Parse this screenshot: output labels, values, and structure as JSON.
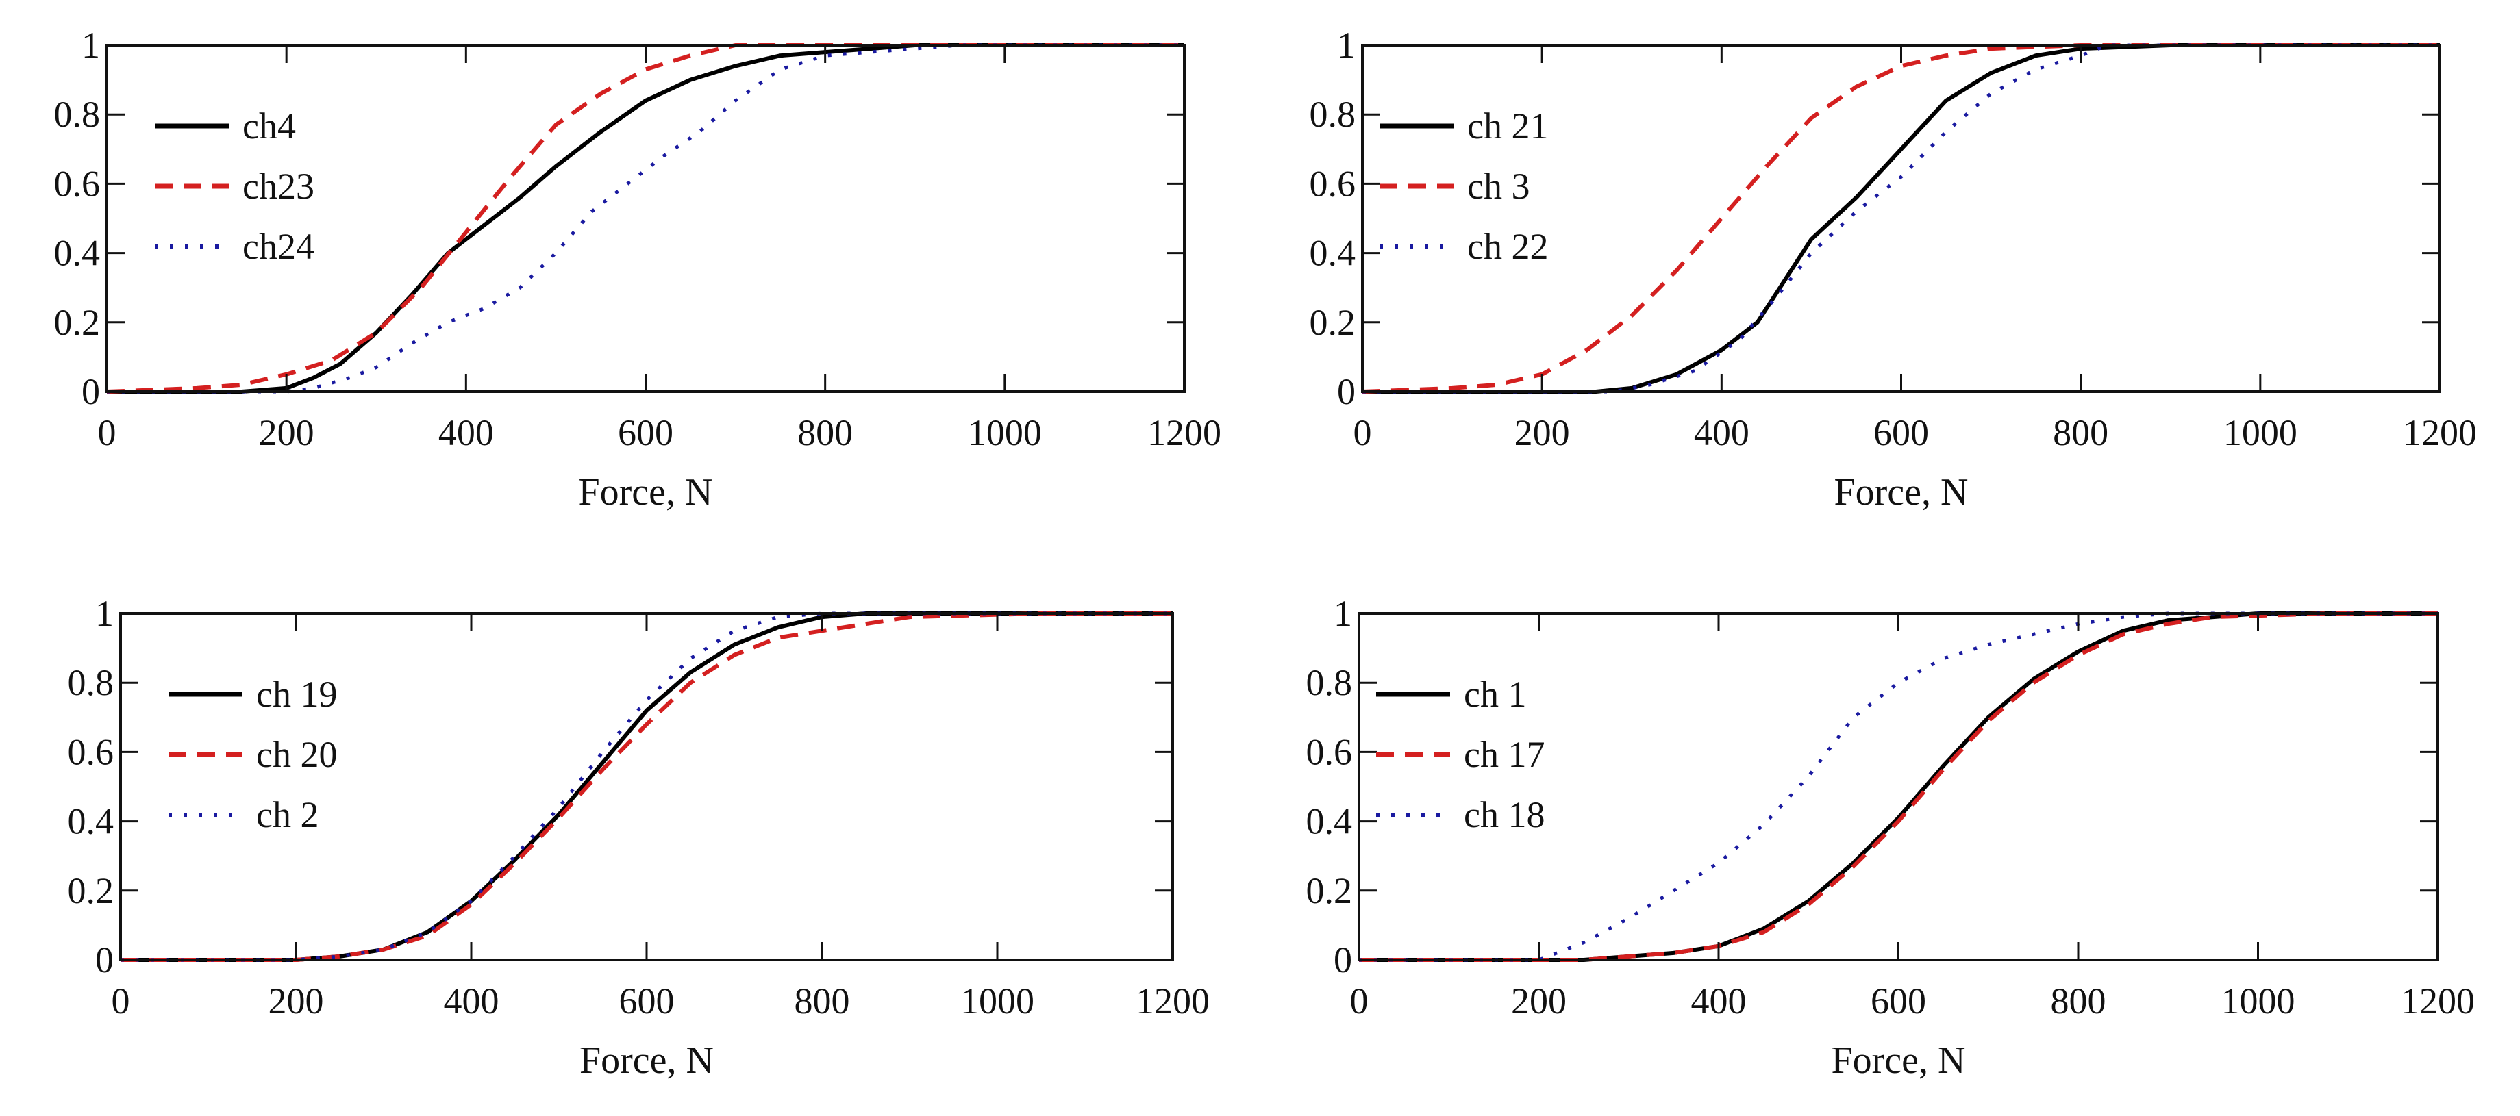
{
  "colors": {
    "solid": "#000000",
    "dashed": "#d42020",
    "dotted": "#1a1aa0"
  },
  "chart_data": [
    {
      "type": "line",
      "xlabel": "Force, N",
      "ylabel": "",
      "xlim": [
        0,
        1200
      ],
      "ylim": [
        0,
        1
      ],
      "xticks": [
        0,
        200,
        400,
        600,
        800,
        1000,
        1200
      ],
      "yticks": [
        0,
        0.2,
        0.4,
        0.6,
        0.8,
        1
      ],
      "xtick_labels": [
        "0",
        "200",
        "400",
        "600",
        "800",
        "1000",
        "1200"
      ],
      "ytick_labels": [
        "0",
        "0.2",
        "0.4",
        "0.6",
        "0.8",
        "1"
      ],
      "grid": false,
      "legend": "top-left",
      "series": [
        {
          "name": "ch4",
          "style": "solid",
          "x": [
            0,
            150,
            200,
            230,
            260,
            300,
            340,
            380,
            420,
            460,
            500,
            550,
            600,
            650,
            700,
            750,
            800,
            850,
            900
          ],
          "y": [
            0,
            0,
            0.01,
            0.04,
            0.08,
            0.17,
            0.28,
            0.4,
            0.48,
            0.56,
            0.65,
            0.75,
            0.84,
            0.9,
            0.94,
            0.97,
            0.98,
            0.99,
            1
          ]
        },
        {
          "name": "ch23",
          "style": "dashed",
          "x": [
            0,
            100,
            150,
            200,
            250,
            300,
            350,
            400,
            450,
            500,
            550,
            600,
            650,
            700
          ],
          "y": [
            0,
            0.01,
            0.02,
            0.05,
            0.09,
            0.17,
            0.3,
            0.46,
            0.62,
            0.77,
            0.86,
            0.93,
            0.97,
            1
          ]
        },
        {
          "name": "ch24",
          "style": "dotted",
          "x": [
            0,
            200,
            230,
            270,
            300,
            340,
            380,
            420,
            460,
            500,
            540,
            580,
            620,
            660,
            700,
            750,
            800,
            850,
            950
          ],
          "y": [
            0,
            0,
            0.01,
            0.04,
            0.07,
            0.14,
            0.2,
            0.24,
            0.3,
            0.4,
            0.52,
            0.6,
            0.68,
            0.75,
            0.84,
            0.93,
            0.97,
            0.98,
            1
          ]
        }
      ]
    },
    {
      "type": "line",
      "xlabel": "Force, N",
      "ylabel": "",
      "xlim": [
        0,
        1200
      ],
      "ylim": [
        0,
        1
      ],
      "xticks": [
        0,
        200,
        400,
        600,
        800,
        1000,
        1200
      ],
      "yticks": [
        0,
        0.2,
        0.4,
        0.6,
        0.8,
        1
      ],
      "xtick_labels": [
        "0",
        "200",
        "400",
        "600",
        "800",
        "1000",
        "1200"
      ],
      "ytick_labels": [
        "0",
        "0.2",
        "0.4",
        "0.6",
        "0.8",
        "1"
      ],
      "grid": false,
      "legend": "top-left",
      "series": [
        {
          "name": "ch 21",
          "style": "solid",
          "x": [
            0,
            260,
            300,
            350,
            400,
            440,
            470,
            500,
            550,
            600,
            650,
            700,
            750,
            800,
            900
          ],
          "y": [
            0,
            0,
            0.01,
            0.05,
            0.12,
            0.2,
            0.32,
            0.44,
            0.56,
            0.7,
            0.84,
            0.92,
            0.97,
            0.99,
            1
          ]
        },
        {
          "name": "ch 3",
          "style": "dashed",
          "x": [
            0,
            100,
            150,
            200,
            250,
            300,
            350,
            400,
            450,
            500,
            550,
            600,
            650,
            700,
            800
          ],
          "y": [
            0,
            0.01,
            0.02,
            0.05,
            0.12,
            0.22,
            0.35,
            0.5,
            0.65,
            0.79,
            0.88,
            0.94,
            0.97,
            0.99,
            1
          ]
        },
        {
          "name": "ch 22",
          "style": "dotted",
          "x": [
            0,
            280,
            320,
            370,
            420,
            460,
            500,
            550,
            600,
            650,
            700,
            750,
            800,
            830
          ],
          "y": [
            0,
            0,
            0.02,
            0.06,
            0.15,
            0.27,
            0.4,
            0.52,
            0.62,
            0.75,
            0.86,
            0.93,
            0.97,
            1
          ]
        }
      ]
    },
    {
      "type": "line",
      "xlabel": "Force, N",
      "ylabel": "",
      "xlim": [
        0,
        1200
      ],
      "ylim": [
        0,
        1
      ],
      "xticks": [
        0,
        200,
        400,
        600,
        800,
        1000,
        1200
      ],
      "yticks": [
        0,
        0.2,
        0.4,
        0.6,
        0.8,
        1
      ],
      "xtick_labels": [
        "0",
        "200",
        "400",
        "600",
        "800",
        "1000",
        "1200"
      ],
      "ytick_labels": [
        "0",
        "0.2",
        "0.4",
        "0.6",
        "0.8",
        "1"
      ],
      "grid": false,
      "legend": "top-left",
      "series": [
        {
          "name": "ch 19",
          "style": "solid",
          "x": [
            0,
            200,
            250,
            300,
            350,
            400,
            450,
            500,
            550,
            600,
            650,
            700,
            750,
            800,
            850
          ],
          "y": [
            0,
            0,
            0.01,
            0.03,
            0.08,
            0.17,
            0.29,
            0.42,
            0.57,
            0.72,
            0.83,
            0.91,
            0.96,
            0.99,
            1
          ]
        },
        {
          "name": "ch 20",
          "style": "dashed",
          "x": [
            0,
            200,
            250,
            300,
            350,
            400,
            450,
            500,
            550,
            600,
            650,
            700,
            750,
            800,
            850,
            900,
            1050
          ],
          "y": [
            0,
            0,
            0.01,
            0.03,
            0.07,
            0.16,
            0.28,
            0.41,
            0.55,
            0.68,
            0.8,
            0.88,
            0.93,
            0.95,
            0.97,
            0.99,
            1
          ]
        },
        {
          "name": "ch 2",
          "style": "dotted",
          "x": [
            0,
            200,
            250,
            300,
            350,
            400,
            450,
            500,
            550,
            600,
            650,
            700,
            750,
            800
          ],
          "y": [
            0,
            0,
            0.01,
            0.03,
            0.08,
            0.17,
            0.3,
            0.44,
            0.6,
            0.75,
            0.87,
            0.95,
            0.99,
            1
          ]
        }
      ]
    },
    {
      "type": "line",
      "xlabel": "Force, N",
      "ylabel": "",
      "xlim": [
        0,
        1200
      ],
      "ylim": [
        0,
        1
      ],
      "xticks": [
        0,
        200,
        400,
        600,
        800,
        1000,
        1200
      ],
      "yticks": [
        0,
        0.2,
        0.4,
        0.6,
        0.8,
        1
      ],
      "xtick_labels": [
        "0",
        "200",
        "400",
        "600",
        "800",
        "1000",
        "1200"
      ],
      "ytick_labels": [
        "0",
        "0.2",
        "0.4",
        "0.6",
        "0.8",
        "1"
      ],
      "grid": false,
      "legend": "top-left",
      "series": [
        {
          "name": "ch 1",
          "style": "solid",
          "x": [
            0,
            250,
            300,
            350,
            400,
            450,
            500,
            550,
            600,
            650,
            700,
            750,
            800,
            850,
            900,
            950,
            1000
          ],
          "y": [
            0,
            0,
            0.01,
            0.02,
            0.04,
            0.09,
            0.17,
            0.28,
            0.41,
            0.56,
            0.7,
            0.81,
            0.89,
            0.95,
            0.98,
            0.99,
            1
          ]
        },
        {
          "name": "ch 17",
          "style": "dashed",
          "x": [
            0,
            250,
            300,
            350,
            400,
            450,
            500,
            550,
            600,
            650,
            700,
            750,
            800,
            850,
            900,
            950,
            1080
          ],
          "y": [
            0,
            0,
            0.01,
            0.02,
            0.04,
            0.08,
            0.16,
            0.27,
            0.4,
            0.55,
            0.69,
            0.8,
            0.88,
            0.94,
            0.97,
            0.99,
            1
          ]
        },
        {
          "name": "ch 18",
          "style": "dotted",
          "x": [
            0,
            200,
            250,
            300,
            350,
            400,
            450,
            500,
            550,
            600,
            650,
            700,
            750,
            800,
            850,
            900
          ],
          "y": [
            0,
            0,
            0.05,
            0.12,
            0.2,
            0.28,
            0.39,
            0.53,
            0.7,
            0.8,
            0.87,
            0.91,
            0.94,
            0.97,
            0.99,
            1
          ]
        }
      ]
    }
  ]
}
